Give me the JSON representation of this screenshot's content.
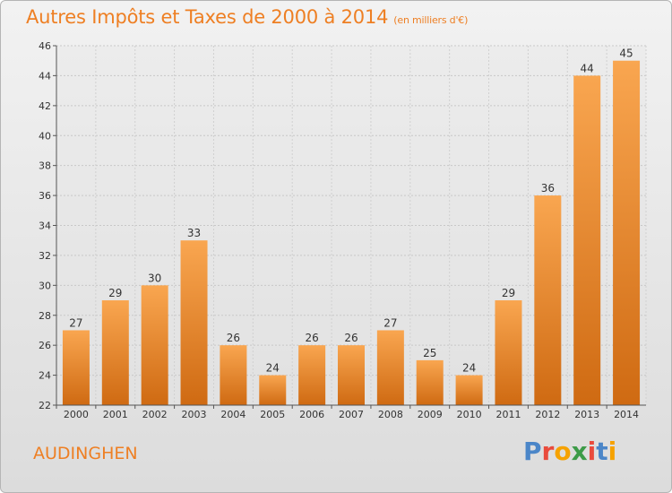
{
  "header": {
    "title": "Autres Impôts et Taxes de 2000 à 2014",
    "subtitle": "(en milliers d'€)"
  },
  "footer": {
    "town": "AUDINGHEN",
    "logo": "Proxiti"
  },
  "colors": {
    "accent": "#ee7f23",
    "bar_light": "#f9a650",
    "bar_dark": "#cf6a12"
  },
  "chart_data": {
    "type": "bar",
    "title": "Autres Impôts et Taxes de 2000 à 2014",
    "subtitle": "(en milliers d'€)",
    "categories": [
      "2000",
      "2001",
      "2002",
      "2003",
      "2004",
      "2005",
      "2006",
      "2007",
      "2008",
      "2009",
      "2010",
      "2011",
      "2012",
      "2013",
      "2014"
    ],
    "values": [
      27,
      29,
      30,
      33,
      26,
      24,
      26,
      26,
      27,
      25,
      24,
      29,
      36,
      44,
      45
    ],
    "ylim": [
      22,
      46
    ],
    "yticks": [
      22,
      24,
      26,
      28,
      30,
      32,
      34,
      36,
      38,
      40,
      42,
      44,
      46
    ],
    "grid": true,
    "xlabel": "",
    "ylabel": ""
  }
}
